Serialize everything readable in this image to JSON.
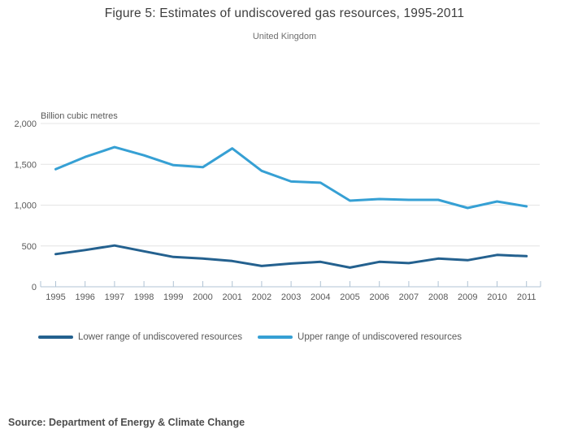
{
  "header": {
    "title": "Figure 5: Estimates of undiscovered gas resources, 1995-2011",
    "subtitle": "United Kingdom"
  },
  "chart_data": {
    "type": "line",
    "title": "Figure 5: Estimates of undiscovered gas resources, 1995-2011",
    "subtitle": "United Kingdom",
    "unit_label": "Billion cubic metres",
    "x": [
      1995,
      1996,
      1997,
      1998,
      1999,
      2000,
      2001,
      2002,
      2003,
      2004,
      2005,
      2006,
      2007,
      2008,
      2009,
      2010,
      2011
    ],
    "series": [
      {
        "name": "Lower range of undiscovered resources",
        "color": "#24618f",
        "values": [
          400,
          450,
          505,
          435,
          365,
          345,
          315,
          255,
          285,
          305,
          235,
          305,
          290,
          345,
          325,
          390,
          375
        ]
      },
      {
        "name": "Upper range of undiscovered resources",
        "color": "#36a0d4",
        "values": [
          1440,
          1590,
          1710,
          1610,
          1490,
          1465,
          1695,
          1420,
          1290,
          1275,
          1055,
          1075,
          1065,
          1065,
          965,
          1045,
          985
        ]
      }
    ],
    "ylim": [
      0,
      2000
    ],
    "yticks": [
      0,
      500,
      1000,
      1500,
      2000
    ],
    "ytick_labels": [
      "0",
      "500",
      "1,000",
      "1,500",
      "2,000"
    ],
    "grid": true,
    "legend_position": "bottom",
    "colors": {
      "gridline": "#e4e4e4",
      "axis": "#b0c3d4",
      "tick_text": "#595959"
    }
  },
  "footer": {
    "source": "Source: Department of Energy & Climate Change"
  }
}
